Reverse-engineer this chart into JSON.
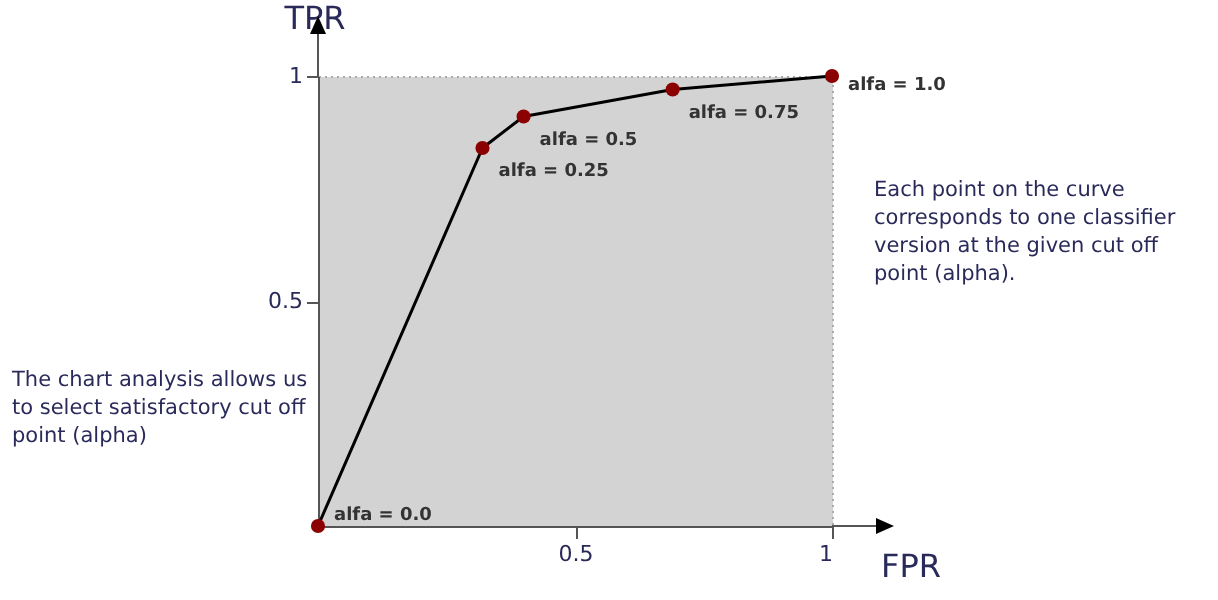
{
  "chart_data": {
    "type": "line",
    "xlabel": "FPR",
    "ylabel": "TPR",
    "x": [
      0,
      0.32,
      0.4,
      0.69,
      1
    ],
    "series": [
      {
        "color": "#000000",
        "values": [
          0,
          0.84,
          0.91,
          0.97,
          1
        ]
      }
    ],
    "marker": "circle",
    "xlim": [
      0,
      1
    ],
    "ylim": [
      0,
      1
    ],
    "xticks": [
      0.5,
      1
    ],
    "yticks": [
      0.5,
      1
    ],
    "grid": false,
    "annotations": [
      "The chart analysis allows us to select satisfactory cut off point (alpha)",
      "Each point on the curve corresponds to one classifier version at the given cut off point (alpha).",
      {
        "text": "alfa = 0.0",
        "x": 0,
        "y": 0
      },
      {
        "text": "alfa = 0.25",
        "x": 0.32,
        "y": 0.84
      },
      {
        "text": "alfa = 0.5",
        "x": 0.4,
        "y": 0.91
      },
      {
        "text": "alfa = 0.75",
        "x": 0.69,
        "y": 0.97
      },
      {
        "text": "alfa = 1.0",
        "x": 1,
        "y": 1
      }
    ]
  }
}
